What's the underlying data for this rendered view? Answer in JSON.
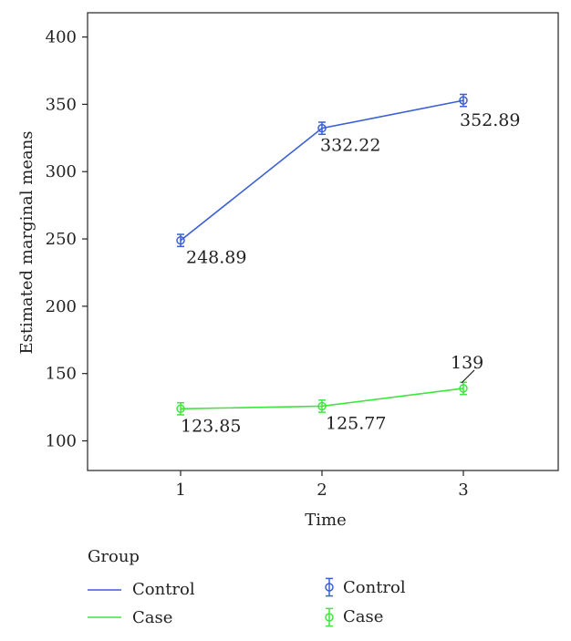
{
  "chart_data": {
    "type": "line",
    "title": "",
    "xlabel": "Time",
    "ylabel": "Estimated marginal means",
    "categories": [
      "1",
      "2",
      "3"
    ],
    "y_ticks": [
      "100",
      "150",
      "200",
      "250",
      "300",
      "350",
      "400"
    ],
    "ylim": [
      78,
      418
    ],
    "grid": false,
    "series": [
      {
        "name": "Control",
        "color": "#3b5fd6",
        "values": [
          248.89,
          332.22,
          352.89
        ],
        "errors": [
          4.5,
          4.5,
          4.5
        ],
        "labels": [
          "248.89",
          "332.22",
          "352.89"
        ]
      },
      {
        "name": "Case",
        "color": "#3ee63e",
        "values": [
          123.85,
          125.77,
          139
        ],
        "errors": [
          4.5,
          4.5,
          4.5
        ],
        "labels": [
          "123.85",
          "125.77",
          "139"
        ]
      }
    ],
    "legend": {
      "title": "Group",
      "placement": "bottom",
      "line_entries": [
        "Control",
        "Case"
      ],
      "marker_entries": [
        "Control",
        "Case"
      ]
    }
  }
}
